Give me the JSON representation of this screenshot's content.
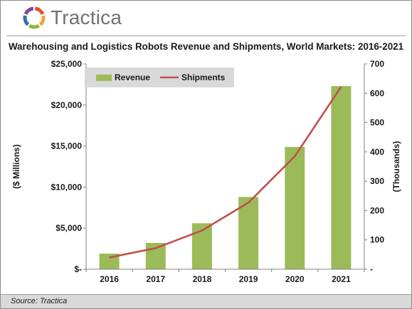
{
  "brand": {
    "name": "Tractica",
    "logo_colors": [
      "#e0542a",
      "#f2a23c",
      "#8fb339",
      "#2f6fb0",
      "#7a4a9e"
    ]
  },
  "footer": {
    "source": "Source: Tractica"
  },
  "chart_data": {
    "type": "bar+line",
    "title": "Warehousing and Logistics Robots Revenue and Shipments, World Markets: 2016-2021",
    "categories": [
      "2016",
      "2017",
      "2018",
      "2019",
      "2020",
      "2021"
    ],
    "series": [
      {
        "name": "Revenue",
        "type": "bar",
        "axis": "left",
        "color": "#9bbb59",
        "values": [
          1900,
          3200,
          5600,
          8800,
          14900,
          22300
        ]
      },
      {
        "name": "Shipments",
        "type": "line",
        "axis": "right",
        "color": "#c0504d",
        "values": [
          40,
          72,
          132,
          227,
          385,
          622
        ]
      }
    ],
    "y_left": {
      "label": "($ Millions)",
      "ylim": [
        0,
        25000
      ],
      "ticks": [
        0,
        5000,
        10000,
        15000,
        20000,
        25000
      ],
      "tick_labels": [
        "$-",
        "$5,000",
        "$10,000",
        "$15,000",
        "$20,000",
        "$25,000"
      ]
    },
    "y_right": {
      "label": "(Thousands)",
      "ylim": [
        0,
        700
      ],
      "ticks": [
        0,
        100,
        200,
        300,
        400,
        500,
        600,
        700
      ],
      "tick_labels": [
        "-",
        "100",
        "200",
        "300",
        "400",
        "500",
        "600",
        "700"
      ]
    },
    "grid": false,
    "legend": "top-left"
  }
}
